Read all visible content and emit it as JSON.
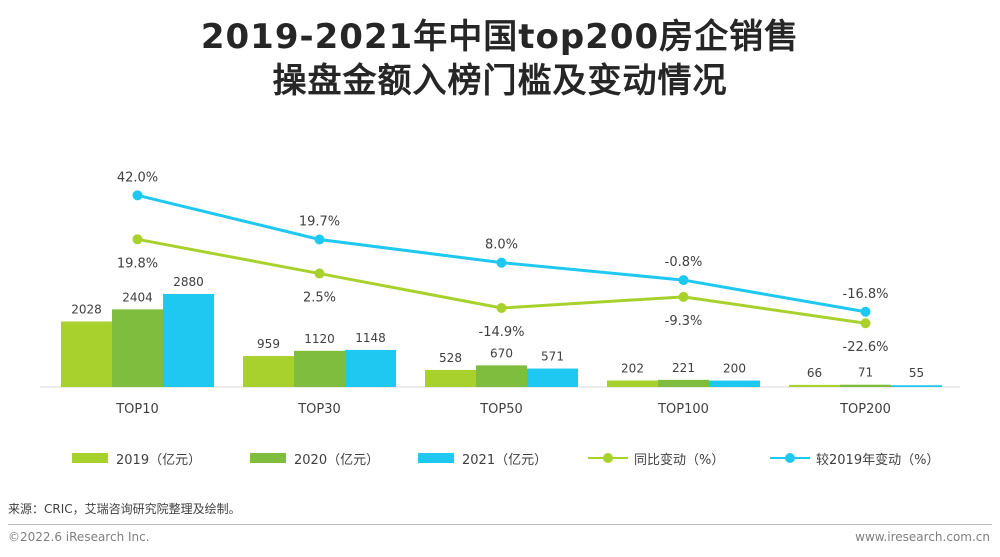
{
  "header": {
    "title_line1": "2019-2021年中国top200房企销售",
    "title_line2": "操盘金额入榜门槛及变动情况"
  },
  "colors": {
    "c2019": "#a9d12d",
    "c2020": "#7ebd3d",
    "c2021": "#1ec8f0",
    "yoy": "#a9d12d",
    "vs2019": "#1ec8f0",
    "text": "#404040",
    "axis": "#d9d9d9"
  },
  "chart_data": {
    "type": "bar",
    "title": "2019-2021年中国top200房企销售操盘金额入榜门槛及变动情况",
    "categories": [
      "TOP10",
      "TOP30",
      "TOP50",
      "TOP100",
      "TOP200"
    ],
    "series": [
      {
        "name": "2019（亿元）",
        "values": [
          2028,
          959,
          528,
          202,
          66
        ]
      },
      {
        "name": "2020（亿元）",
        "values": [
          2404,
          1120,
          670,
          221,
          71
        ]
      },
      {
        "name": "2021（亿元）",
        "values": [
          2880,
          1148,
          571,
          200,
          55
        ]
      }
    ],
    "line_series": [
      {
        "name": "同比变动（%）",
        "values": [
          19.8,
          2.5,
          -14.9,
          -9.3,
          -22.6
        ],
        "labels": [
          "19.8%",
          "2.5%",
          "-14.9%",
          "-9.3%",
          "-22.6%"
        ]
      },
      {
        "name": "较2019年变动（%）",
        "values": [
          42.0,
          19.7,
          8.0,
          -0.8,
          -16.8
        ],
        "labels": [
          "42.0%",
          "19.7%",
          "8.0%",
          "-0.8%",
          "-16.8%"
        ]
      }
    ],
    "bar_ylim": [
      0,
      3000
    ],
    "line_ylim": [
      -50,
      60
    ],
    "xlabel": "",
    "ylabel": "",
    "legend_position": "bottom"
  },
  "footer": {
    "source": "来源：CRIC，艾瑞咨询研究院整理及绘制。",
    "copyright": "©2022.6 iResearch Inc.",
    "website": "www.iresearch.com.cn"
  }
}
